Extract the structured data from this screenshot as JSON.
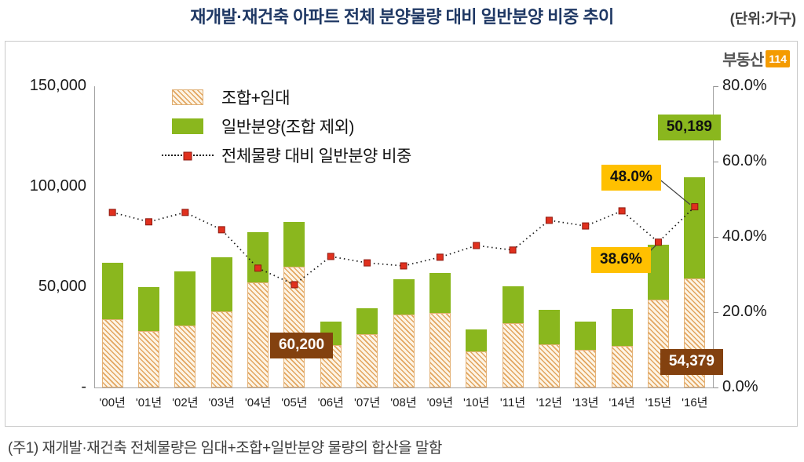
{
  "header": {
    "title": "재개발·재건축 아파트 전체 분양물량 대비 일반분양 비중 추이",
    "unit_label": "(단위:가구)"
  },
  "logo": {
    "text": "부동산",
    "badge": "114"
  },
  "footnote": "(주1) 재개발·재건축 전체물량은 임대+조합+일반분양 물량의 합산을 말함",
  "colors": {
    "green": "#8ab71e",
    "hatch": "#e2a55f",
    "hatch-bg": "#fdf4e5",
    "yellow": "#ffc000",
    "brown": "#83410f",
    "marker-red": "#e0301e",
    "orange": "#f49b00",
    "title-navy": "#1f3864"
  },
  "chart_data": {
    "type": "bar",
    "subtype": "stacked-bars-with-line",
    "title": "재개발·재건축 아파트 전체 분양물량 대비 일반분양 비중 추이",
    "categories": [
      "'00년",
      "'01년",
      "'02년",
      "'03년",
      "'04년",
      "'05년",
      "'06년",
      "'07년",
      "'08년",
      "'09년",
      "'10년",
      "'11년",
      "'12년",
      "'13년",
      "'14년",
      "'15년",
      "'16년"
    ],
    "series": [
      {
        "name": "조합+임대",
        "type": "bar",
        "stack": true,
        "axis": "left",
        "values": [
          34000,
          28000,
          31000,
          38000,
          52500,
          60200,
          21000,
          26500,
          36500,
          37000,
          18000,
          32000,
          21500,
          18700,
          20700,
          43600,
          54379
        ]
      },
      {
        "name": "일반분양(조합 제외)",
        "type": "bar",
        "stack": true,
        "axis": "left",
        "values": [
          28000,
          22000,
          27000,
          27000,
          25000,
          22200,
          11800,
          13000,
          17400,
          20000,
          10900,
          18400,
          17200,
          14000,
          18300,
          27400,
          50189
        ]
      },
      {
        "name": "전체물량 대비 일반분양 비중",
        "type": "line",
        "axis": "right",
        "values": [
          46.5,
          44.0,
          46.5,
          41.9,
          31.7,
          27.3,
          34.8,
          33.1,
          32.3,
          34.6,
          37.7,
          36.5,
          44.4,
          42.9,
          46.9,
          38.6,
          48.0
        ]
      }
    ],
    "left_axis": {
      "min": 0,
      "max": 150000,
      "ticks": [
        {
          "label": "150,000",
          "value": 150000
        },
        {
          "label": "100,000",
          "value": 100000
        },
        {
          "label": "50,000",
          "value": 50000
        },
        {
          "label": "-",
          "value": 0
        }
      ]
    },
    "right_axis": {
      "min": 0,
      "max": 80,
      "ticks": [
        {
          "label": "80.0%",
          "value": 80
        },
        {
          "label": "60.0%",
          "value": 60
        },
        {
          "label": "40.0%",
          "value": 40
        },
        {
          "label": "20.0%",
          "value": 20
        },
        {
          "label": "0.0%",
          "value": 0
        }
      ]
    },
    "legend_position": "inside-top-left",
    "grid": false,
    "annotations": [
      {
        "id": "general-2016",
        "text": "50,189",
        "style": "green"
      },
      {
        "id": "ratio-2016",
        "text": "48.0%",
        "style": "yellow"
      },
      {
        "id": "ratio-2015",
        "text": "38.6%",
        "style": "yellow"
      },
      {
        "id": "union-2005",
        "text": "60,200",
        "style": "brown"
      },
      {
        "id": "union-2016",
        "text": "54,379",
        "style": "brown"
      }
    ]
  }
}
